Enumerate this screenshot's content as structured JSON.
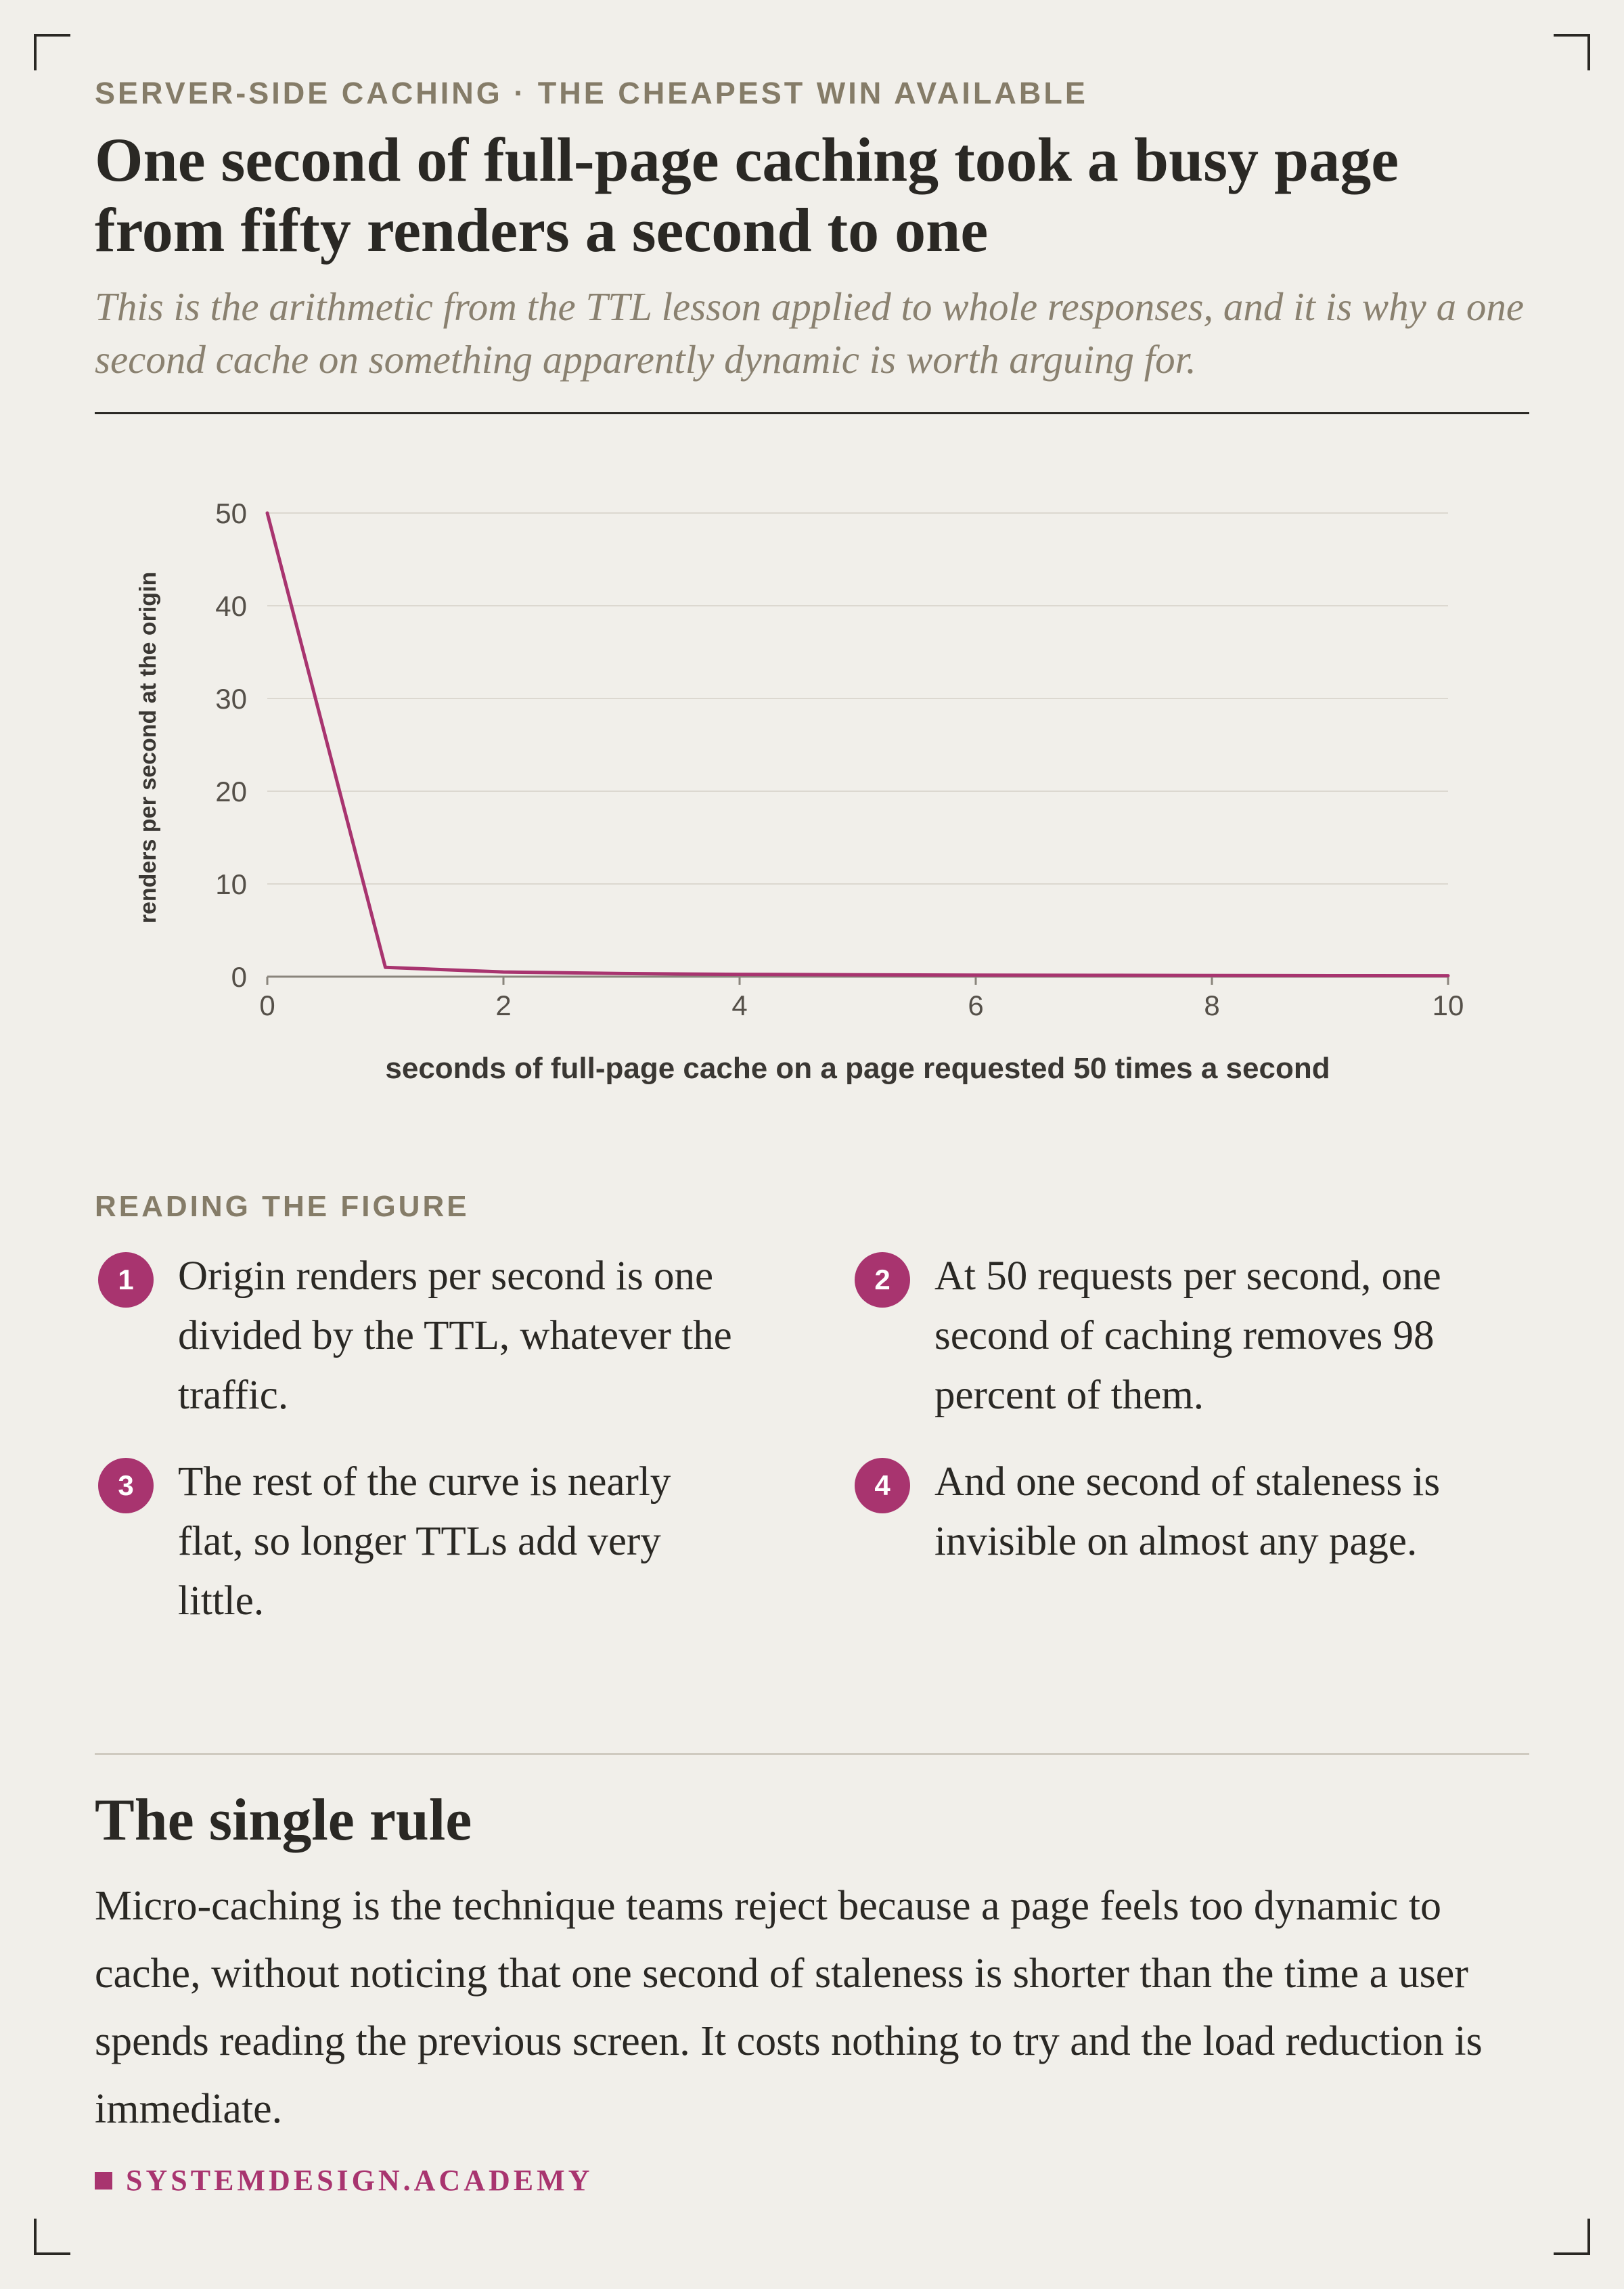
{
  "header": {
    "kicker": "SERVER-SIDE CACHING · THE CHEAPEST WIN AVAILABLE",
    "title": "One second of full-page caching took a busy page from fifty renders a second to one",
    "subtitle": "This is the arithmetic from the TTL lesson applied to whole responses, and it is why a one second cache on something apparently dynamic is worth arguing for."
  },
  "chart_data": {
    "type": "line",
    "title": "",
    "xlabel": "seconds of full-page cache on a page requested 50 times a second",
    "ylabel": "renders per second at the origin",
    "xlim": [
      0,
      10
    ],
    "ylim": [
      0,
      50
    ],
    "x_ticks": [
      0,
      2,
      4,
      6,
      8,
      10
    ],
    "y_ticks": [
      0,
      10,
      20,
      30,
      40,
      50
    ],
    "grid": "horizontal",
    "legend": "none",
    "color": "#a8346f",
    "x": [
      0,
      1,
      2,
      3,
      4,
      5,
      6,
      7,
      8,
      9,
      10
    ],
    "y": [
      50,
      1,
      0.5,
      0.333,
      0.25,
      0.2,
      0.167,
      0.143,
      0.125,
      0.111,
      0.1
    ]
  },
  "reading": {
    "label": "READING THE FIGURE",
    "notes": [
      {
        "number": "1",
        "text": "Origin renders per second is one divided by the TTL, whatever the traffic."
      },
      {
        "number": "2",
        "text": "At 50 requests per second, one second of caching removes 98 percent of them."
      },
      {
        "number": "3",
        "text": "The rest of the curve is nearly flat, so longer TTLs add very little."
      },
      {
        "number": "4",
        "text": "And one second of staleness is invisible on almost any page."
      }
    ]
  },
  "rule": {
    "heading": "The single rule",
    "body": "Micro-caching is the technique teams reject because a page feels too dynamic to cache, without noticing that one second of staleness is shorter than the time a user spends reading the previous screen. It costs nothing to try and the load reduction is immediate."
  },
  "footer": {
    "brand": "SYSTEMDESIGN.ACADEMY",
    "brand_color": "#a8346f"
  }
}
